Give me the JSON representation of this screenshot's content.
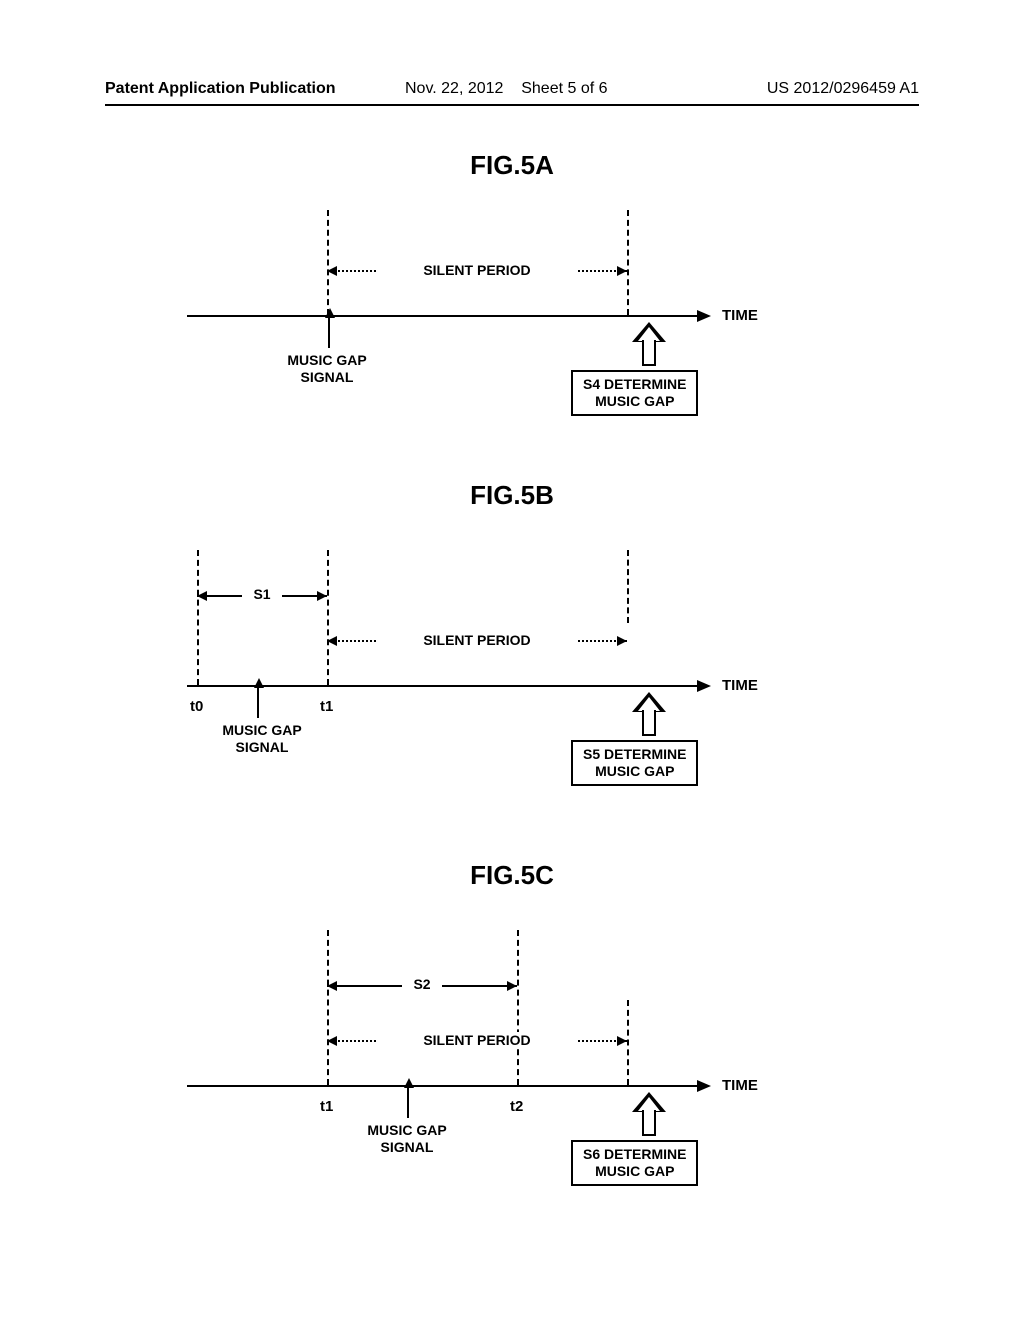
{
  "header": {
    "left": "Patent Application Publication",
    "date": "Nov. 22, 2012",
    "sheet": "Sheet 5 of 6",
    "id": "US 2012/0296459 A1"
  },
  "figs": {
    "a": {
      "title": "FIG.5A",
      "silent": "SILENT PERIOD",
      "time": "TIME",
      "signal": "MUSIC GAP\nSIGNAL",
      "det": "S4 DETERMINE\nMUSIC GAP"
    },
    "b": {
      "title": "FIG.5B",
      "s": "S1",
      "t_left": "t0",
      "t_mid": "t1",
      "silent": "SILENT PERIOD",
      "time": "TIME",
      "signal": "MUSIC GAP\nSIGNAL",
      "det": "S5 DETERMINE\nMUSIC GAP"
    },
    "c": {
      "title": "FIG.5C",
      "s": "S2",
      "t_left": "t1",
      "t_mid": "t2",
      "silent": "SILENT PERIOD",
      "time": "TIME",
      "signal": "MUSIC GAP\nSIGNAL",
      "det": "S6 DETERMINE\nMUSIC GAP"
    }
  }
}
